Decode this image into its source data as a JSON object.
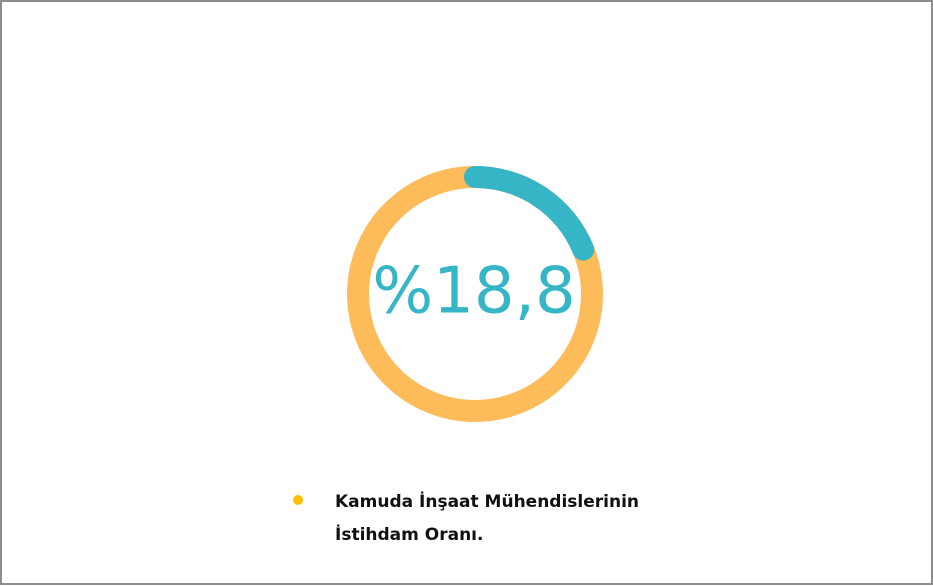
{
  "chart_data": {
    "type": "donut",
    "values": [
      18.8
    ],
    "value_labels": [
      "%18,8"
    ],
    "ylim": [
      0,
      100
    ],
    "color": "#35b5c6",
    "track_color": "#fdbb5a",
    "legend": {
      "text": "Kamuda İnşaat Mühendislerinin İstihdam Oranı.",
      "color": "#ffc000"
    }
  }
}
